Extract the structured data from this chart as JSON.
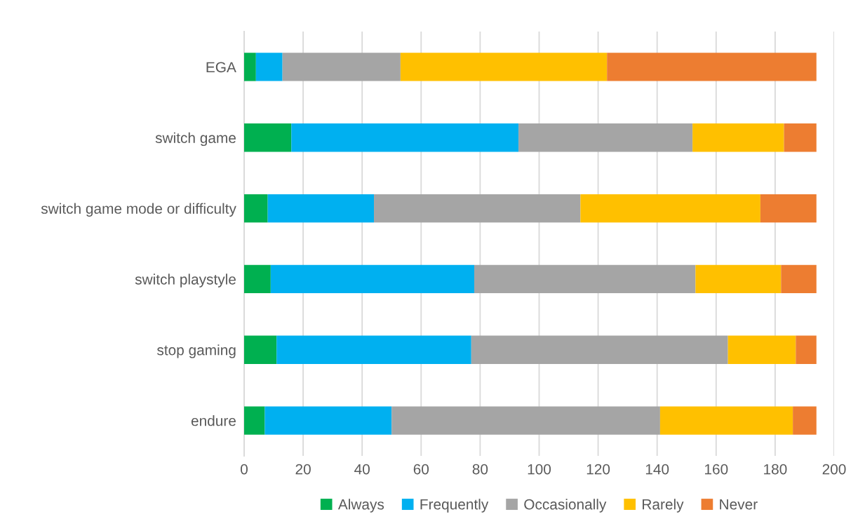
{
  "chart_data": {
    "type": "bar",
    "orientation": "horizontal",
    "stacked": true,
    "categories": [
      "EGA",
      "switch game",
      "switch game mode or difficulty",
      "switch playstyle",
      "stop gaming",
      "endure"
    ],
    "series": [
      {
        "name": "Always",
        "color": "#00b050",
        "values": [
          4,
          16,
          8,
          9,
          11,
          7
        ]
      },
      {
        "name": "Frequently",
        "color": "#00b0f0",
        "values": [
          9,
          77,
          36,
          69,
          66,
          43
        ]
      },
      {
        "name": "Occasionally",
        "color": "#a5a5a5",
        "values": [
          40,
          59,
          70,
          75,
          87,
          91
        ]
      },
      {
        "name": "Rarely",
        "color": "#ffc000",
        "values": [
          70,
          31,
          61,
          29,
          23,
          45
        ]
      },
      {
        "name": "Never",
        "color": "#ed7d31",
        "values": [
          71,
          11,
          19,
          12,
          7,
          8
        ]
      }
    ],
    "xlim": [
      0,
      200
    ],
    "xticks": [
      0,
      20,
      40,
      60,
      80,
      100,
      120,
      140,
      160,
      180,
      200
    ],
    "grid": "x",
    "legend": "bottom"
  }
}
